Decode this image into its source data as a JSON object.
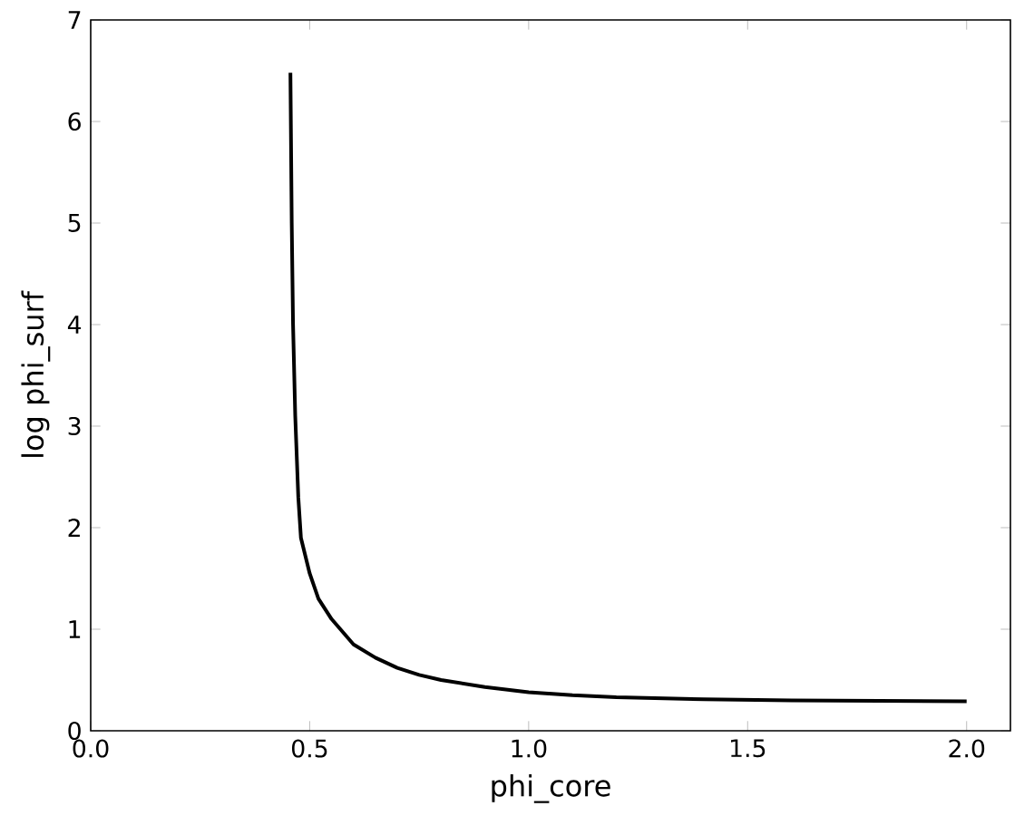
{
  "chart_data": {
    "type": "line",
    "xlabel": "phi_core",
    "ylabel": "log phi_surf",
    "xlim": [
      0,
      2.1
    ],
    "ylim": [
      0,
      7
    ],
    "xticks": [
      {
        "value": 0,
        "label": "0.0"
      },
      {
        "value": 0.5,
        "label": "0.5"
      },
      {
        "value": 1,
        "label": "1.0"
      },
      {
        "value": 1.5,
        "label": "1.5"
      },
      {
        "value": 2,
        "label": "2.0"
      }
    ],
    "yticks": [
      0,
      1,
      2,
      3,
      4,
      5,
      6,
      7
    ],
    "series": [
      {
        "color": "#000000",
        "x": [
          0.456,
          0.459,
          0.462,
          0.467,
          0.474,
          0.48,
          0.5,
          0.52,
          0.55,
          0.6,
          0.65,
          0.7,
          0.75,
          0.8,
          0.9,
          1.0,
          1.1,
          1.2,
          1.4,
          1.6,
          1.8,
          2.0
        ],
        "values": [
          6.48,
          5.0,
          4.0,
          3.1,
          2.3,
          1.9,
          1.55,
          1.3,
          1.1,
          0.85,
          0.72,
          0.62,
          0.55,
          0.5,
          0.43,
          0.38,
          0.35,
          0.33,
          0.31,
          0.3,
          0.295,
          0.29
        ]
      }
    ]
  }
}
